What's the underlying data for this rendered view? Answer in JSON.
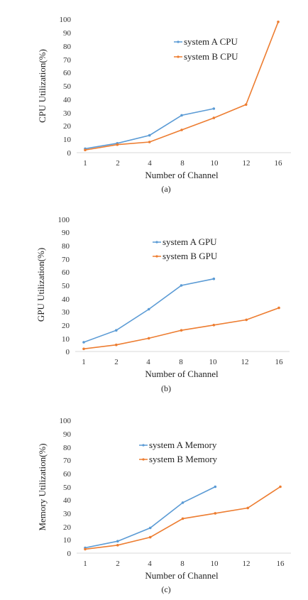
{
  "colors": {
    "series_a": "#5b9bd5",
    "series_b": "#ed7d31",
    "grid": "#d9d9d9"
  },
  "chart_data": [
    {
      "type": "line",
      "categories": [
        "1",
        "2",
        "4",
        "8",
        "10",
        "12",
        "16"
      ],
      "series": [
        {
          "name": "system A CPU",
          "values": [
            3,
            7,
            13,
            28,
            33,
            null,
            null
          ]
        },
        {
          "name": "system B CPU",
          "values": [
            2,
            6,
            8,
            17,
            26,
            36,
            98
          ]
        }
      ],
      "xlabel": "Number of Channel",
      "ylabel": "CPU  Utilization(%)",
      "ylim": [
        0,
        100
      ],
      "yticks": [
        "0",
        "10",
        "20",
        "30",
        "40",
        "50",
        "60",
        "70",
        "80",
        "90",
        "100"
      ],
      "caption": "(a)",
      "grid": false,
      "legend": "top-right"
    },
    {
      "type": "line",
      "categories": [
        "1",
        "2",
        "4",
        "8",
        "10",
        "12",
        "16"
      ],
      "series": [
        {
          "name": "system A GPU",
          "values": [
            7,
            16,
            32,
            50,
            55,
            null,
            null
          ]
        },
        {
          "name": "system B GPU",
          "values": [
            2,
            5,
            10,
            16,
            20,
            24,
            33
          ]
        }
      ],
      "xlabel": "Number of Channel",
      "ylabel": "GPU  Utilization(%)",
      "ylim": [
        0,
        100
      ],
      "yticks": [
        "0",
        "10",
        "20",
        "30",
        "40",
        "50",
        "60",
        "70",
        "80",
        "90",
        "100"
      ],
      "caption": "(b)",
      "grid": false,
      "legend": "top-left"
    },
    {
      "type": "line",
      "categories": [
        "1",
        "2",
        "4",
        "8",
        "10",
        "12",
        "16"
      ],
      "series": [
        {
          "name": "system A Memory",
          "values": [
            4,
            9,
            19,
            38,
            50,
            null,
            null
          ]
        },
        {
          "name": "system B Memory",
          "values": [
            3,
            6,
            12,
            26,
            30,
            34,
            50
          ]
        }
      ],
      "xlabel": "Number of Channel",
      "ylabel": "Memory  Utilization(%)",
      "ylim": [
        0,
        100
      ],
      "yticks": [
        "0",
        "10",
        "20",
        "30",
        "40",
        "50",
        "60",
        "70",
        "80",
        "90",
        "100"
      ],
      "caption": "(c)",
      "grid": false,
      "legend": "top-center"
    }
  ]
}
